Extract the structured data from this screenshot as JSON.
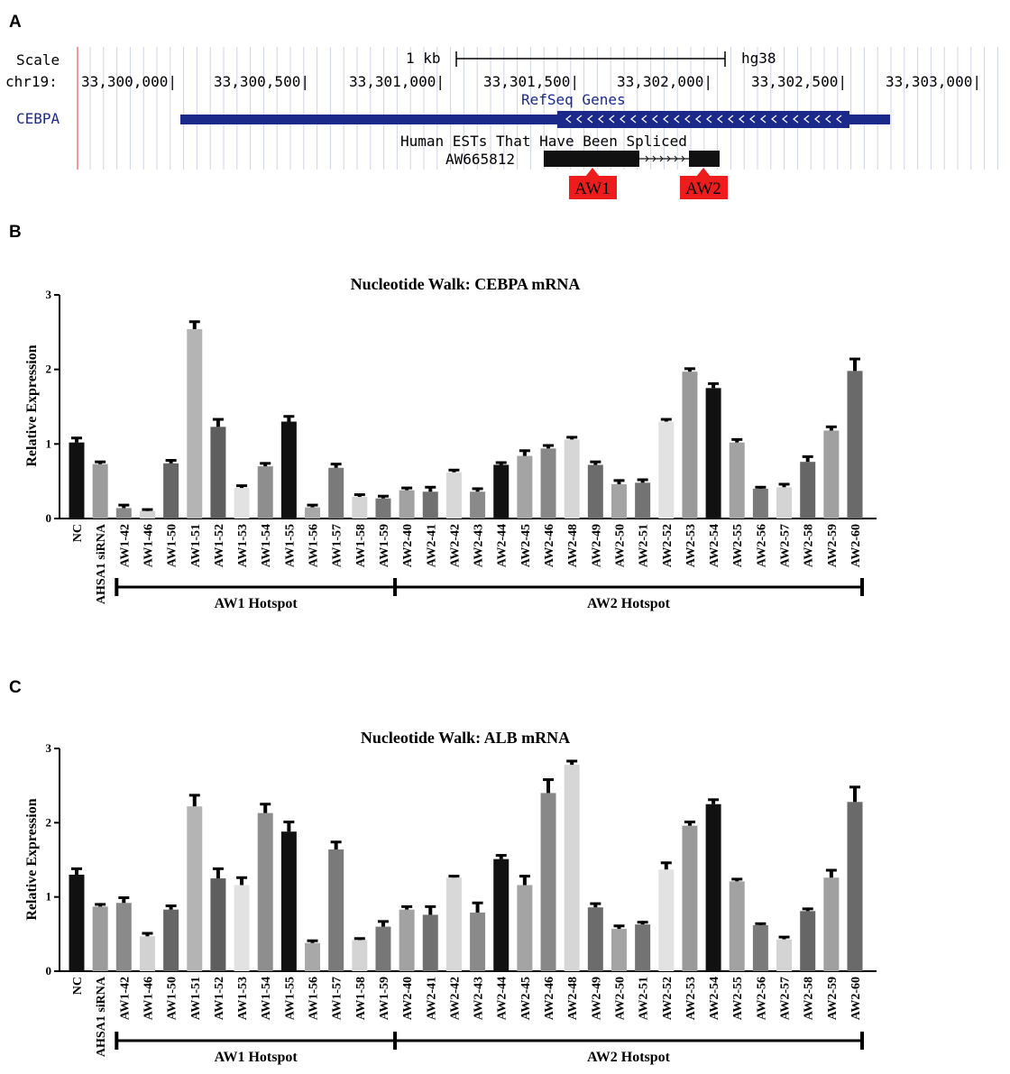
{
  "panel_labels": [
    "A",
    "B",
    "C"
  ],
  "browser": {
    "scale_label": "Scale",
    "scale_bar_label": "1 kb",
    "assembly": "hg38",
    "chrom_label": "chr19:",
    "positions": [
      "33,300,000|",
      "33,300,500|",
      "33,301,000|",
      "33,301,500|",
      "33,302,000|",
      "33,302,500|",
      "33,303,000|"
    ],
    "refseq_track_label": "RefSeq Genes",
    "gene_name": "CEBPA",
    "est_track_label": "Human ESTs That Have Been Spliced",
    "est_name": "AW665812",
    "hotspot_labels": [
      "AW1",
      "AW2"
    ],
    "colors": {
      "gene": "#1b2a8a",
      "gene_label": "#1b2a8a",
      "hotspot": "#ee1c1c",
      "est": "#111111",
      "grid": "#cfd3ea"
    }
  },
  "chart_data": [
    {
      "type": "bar",
      "title": "Nucleotide Walk: CEBPA mRNA",
      "ylabel": "Relative Expression",
      "ylim": [
        0,
        3
      ],
      "yticks": [
        "0",
        "1",
        "2",
        "3"
      ],
      "categories": [
        "NC",
        "AHSA1 siRNA",
        "AW1-42",
        "AW1-46",
        "AW1-50",
        "AW1-51",
        "AW1-52",
        "AW1-53",
        "AW1-54",
        "AW1-55",
        "AW1-56",
        "AW1-57",
        "AW1-58",
        "AW1-59",
        "AW2-40",
        "AW2-41",
        "AW2-42",
        "AW2-43",
        "AW2-44",
        "AW2-45",
        "AW2-46",
        "AW2-48",
        "AW2-49",
        "AW2-50",
        "AW2-51",
        "AW2-52",
        "AW2-53",
        "AW2-54",
        "AW2-55",
        "AW2-56",
        "AW2-57",
        "AW2-58",
        "AW2-59",
        "AW2-60"
      ],
      "values": [
        1.02,
        0.73,
        0.14,
        0.1,
        0.74,
        2.54,
        1.23,
        0.41,
        0.7,
        1.3,
        0.15,
        0.68,
        0.29,
        0.27,
        0.38,
        0.36,
        0.62,
        0.36,
        0.72,
        0.84,
        0.94,
        1.06,
        0.72,
        0.46,
        0.48,
        1.3,
        1.97,
        1.75,
        1.02,
        0.4,
        0.42,
        0.76,
        1.18,
        1.98
      ],
      "errors": [
        0.06,
        0.03,
        0.04,
        0.02,
        0.04,
        0.1,
        0.1,
        0.03,
        0.04,
        0.07,
        0.03,
        0.05,
        0.03,
        0.03,
        0.03,
        0.06,
        0.03,
        0.04,
        0.03,
        0.07,
        0.04,
        0.03,
        0.04,
        0.05,
        0.04,
        0.03,
        0.04,
        0.06,
        0.04,
        0.02,
        0.04,
        0.07,
        0.05,
        0.16
      ],
      "bar_colors": [
        "#111111",
        "#9c9c9c",
        "#8a8a8a",
        "#d2d2d2",
        "#666666",
        "#b4b4b4",
        "#5e5e5e",
        "#e2e2e2",
        "#8e8e8e",
        "#111111",
        "#a8a8a8",
        "#7a7a7a",
        "#d4d4d4",
        "#777777",
        "#a2a2a2",
        "#707070",
        "#d8d8d8",
        "#8a8a8a",
        "#111111",
        "#a4a4a4",
        "#888888",
        "#d6d6d6",
        "#6c6c6c",
        "#a4a4a4",
        "#737373",
        "#e2e2e2",
        "#9a9a9a",
        "#111111",
        "#a2a2a2",
        "#7a7a7a",
        "#d4d4d4",
        "#666666",
        "#a0a0a0",
        "#6a6a6a"
      ],
      "groups": [
        {
          "label": "AW1 Hotspot",
          "from": 2,
          "to": 13
        },
        {
          "label": "AW2 Hotspot",
          "from": 14,
          "to": 33
        }
      ],
      "grid": false
    },
    {
      "type": "bar",
      "title": "Nucleotide Walk: ALB mRNA",
      "ylabel": "Relative Expression",
      "ylim": [
        0,
        3
      ],
      "yticks": [
        "0",
        "1",
        "2",
        "3"
      ],
      "categories": [
        "NC",
        "AHSA1 siRNA",
        "AW1-42",
        "AW1-46",
        "AW1-50",
        "AW1-51",
        "AW1-52",
        "AW1-53",
        "AW1-54",
        "AW1-55",
        "AW1-56",
        "AW1-57",
        "AW1-58",
        "AW1-59",
        "AW2-40",
        "AW2-41",
        "AW2-42",
        "AW2-43",
        "AW2-44",
        "AW2-45",
        "AW2-46",
        "AW2-48",
        "AW2-49",
        "AW2-50",
        "AW2-51",
        "AW2-52",
        "AW2-53",
        "AW2-54",
        "AW2-55",
        "AW2-56",
        "AW2-57",
        "AW2-58",
        "AW2-59",
        "AW2-60"
      ],
      "values": [
        1.3,
        0.87,
        0.92,
        0.47,
        0.83,
        2.22,
        1.25,
        1.16,
        2.13,
        1.88,
        0.38,
        1.64,
        0.42,
        0.6,
        0.83,
        0.76,
        1.26,
        0.79,
        1.51,
        1.16,
        2.4,
        2.78,
        0.86,
        0.57,
        0.63,
        1.37,
        1.96,
        2.25,
        1.21,
        0.62,
        0.43,
        0.81,
        1.26,
        2.28
      ],
      "errors": [
        0.08,
        0.03,
        0.07,
        0.04,
        0.05,
        0.15,
        0.13,
        0.1,
        0.12,
        0.13,
        0.03,
        0.1,
        0.02,
        0.07,
        0.04,
        0.11,
        0.02,
        0.13,
        0.05,
        0.12,
        0.18,
        0.05,
        0.05,
        0.04,
        0.03,
        0.09,
        0.05,
        0.06,
        0.03,
        0.02,
        0.03,
        0.03,
        0.1,
        0.2
      ],
      "bar_colors": [
        "#111111",
        "#9c9c9c",
        "#8a8a8a",
        "#d2d2d2",
        "#666666",
        "#b4b4b4",
        "#5e5e5e",
        "#e2e2e2",
        "#8e8e8e",
        "#111111",
        "#a8a8a8",
        "#7a7a7a",
        "#d4d4d4",
        "#777777",
        "#a2a2a2",
        "#707070",
        "#d8d8d8",
        "#8a8a8a",
        "#111111",
        "#a4a4a4",
        "#888888",
        "#d6d6d6",
        "#6c6c6c",
        "#a4a4a4",
        "#737373",
        "#e2e2e2",
        "#9a9a9a",
        "#111111",
        "#a2a2a2",
        "#7a7a7a",
        "#d4d4d4",
        "#666666",
        "#a0a0a0",
        "#6a6a6a"
      ],
      "groups": [
        {
          "label": "AW1 Hotspot",
          "from": 2,
          "to": 13
        },
        {
          "label": "AW2 Hotspot",
          "from": 14,
          "to": 33
        }
      ],
      "grid": false
    }
  ]
}
